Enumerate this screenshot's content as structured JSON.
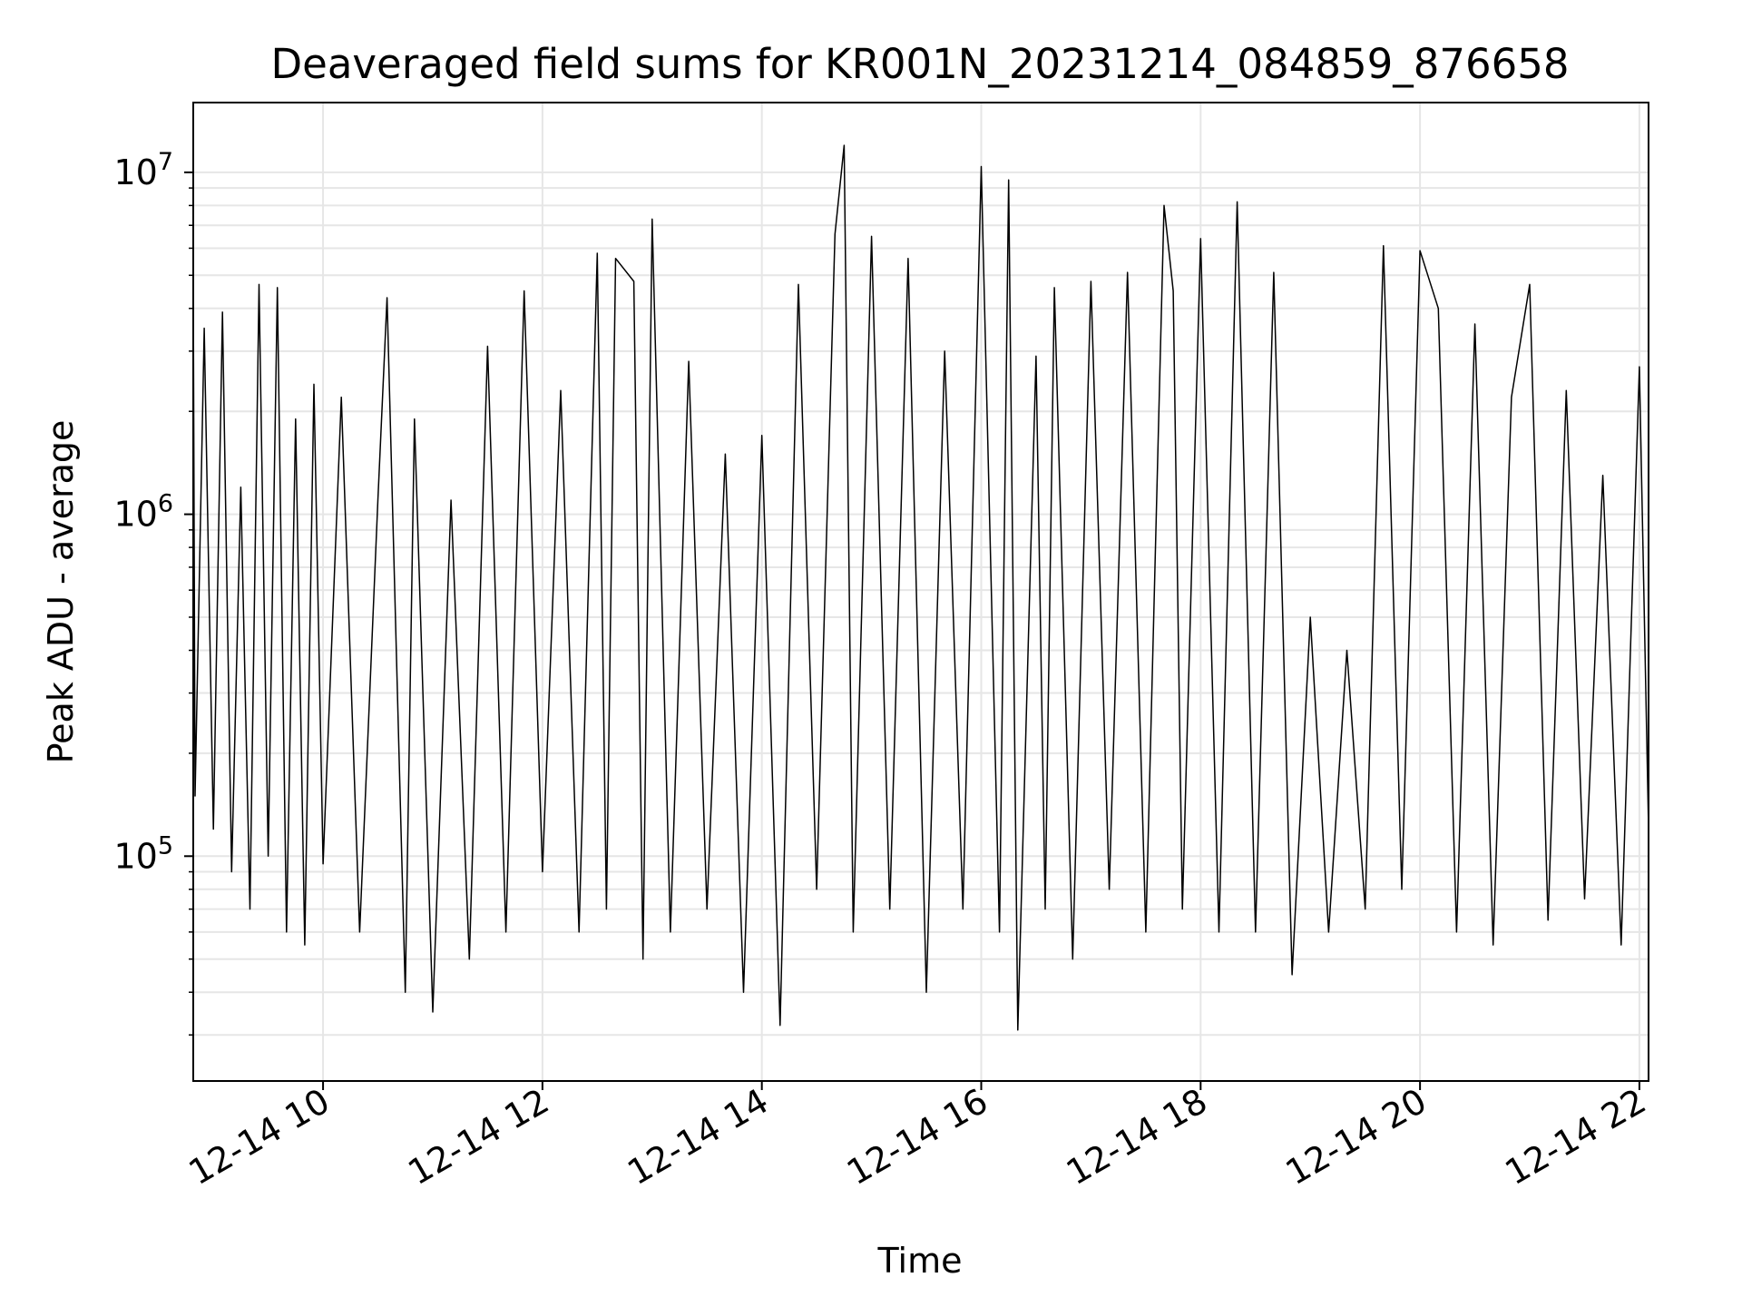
{
  "chart_data": {
    "type": "line",
    "title": "Deaveraged field sums for KR001N_20231214_084859_876658",
    "xlabel": "Time",
    "ylabel": "Peak ADU - average",
    "x_range": [
      "2023-12-14T08:49",
      "2023-12-14T22:05"
    ],
    "x_ticks": [
      {
        "t": "2023-12-14T10:00",
        "label": "12-14 10"
      },
      {
        "t": "2023-12-14T12:00",
        "label": "12-14 12"
      },
      {
        "t": "2023-12-14T14:00",
        "label": "12-14 14"
      },
      {
        "t": "2023-12-14T16:00",
        "label": "12-14 16"
      },
      {
        "t": "2023-12-14T18:00",
        "label": "12-14 18"
      },
      {
        "t": "2023-12-14T20:00",
        "label": "12-14 20"
      },
      {
        "t": "2023-12-14T22:00",
        "label": "12-14 22"
      }
    ],
    "y_scale": "log",
    "ylim": [
      22000,
      16000000
    ],
    "y_ticks": [
      {
        "value": 100000,
        "base": "10",
        "exp": "5"
      },
      {
        "value": 1000000,
        "base": "10",
        "exp": "6"
      },
      {
        "value": 10000000,
        "base": "10",
        "exp": "7"
      }
    ],
    "grid": true,
    "line_color": "#000000",
    "grid_color": "#e6e6e6",
    "series": [
      {
        "x": [
          "2023-12-14T08:49",
          "2023-12-14T08:50",
          "2023-12-14T08:55",
          "2023-12-14T09:00",
          "2023-12-14T09:05",
          "2023-12-14T09:10",
          "2023-12-14T09:15",
          "2023-12-14T09:20",
          "2023-12-14T09:25",
          "2023-12-14T09:30",
          "2023-12-14T09:35",
          "2023-12-14T09:40",
          "2023-12-14T09:45",
          "2023-12-14T09:50",
          "2023-12-14T09:55",
          "2023-12-14T10:00",
          "2023-12-14T10:10",
          "2023-12-14T10:20",
          "2023-12-14T10:30",
          "2023-12-14T10:35",
          "2023-12-14T10:45",
          "2023-12-14T10:50",
          "2023-12-14T11:00",
          "2023-12-14T11:10",
          "2023-12-14T11:20",
          "2023-12-14T11:30",
          "2023-12-14T11:40",
          "2023-12-14T11:50",
          "2023-12-14T12:00",
          "2023-12-14T12:10",
          "2023-12-14T12:20",
          "2023-12-14T12:30",
          "2023-12-14T12:35",
          "2023-12-14T12:40",
          "2023-12-14T12:50",
          "2023-12-14T12:55",
          "2023-12-14T13:00",
          "2023-12-14T13:10",
          "2023-12-14T13:20",
          "2023-12-14T13:30",
          "2023-12-14T13:40",
          "2023-12-14T13:50",
          "2023-12-14T14:00",
          "2023-12-14T14:10",
          "2023-12-14T14:20",
          "2023-12-14T14:30",
          "2023-12-14T14:40",
          "2023-12-14T14:45",
          "2023-12-14T14:50",
          "2023-12-14T15:00",
          "2023-12-14T15:10",
          "2023-12-14T15:20",
          "2023-12-14T15:30",
          "2023-12-14T15:40",
          "2023-12-14T15:50",
          "2023-12-14T16:00",
          "2023-12-14T16:10",
          "2023-12-14T16:15",
          "2023-12-14T16:20",
          "2023-12-14T16:30",
          "2023-12-14T16:35",
          "2023-12-14T16:40",
          "2023-12-14T16:50",
          "2023-12-14T17:00",
          "2023-12-14T17:10",
          "2023-12-14T17:20",
          "2023-12-14T17:30",
          "2023-12-14T17:40",
          "2023-12-14T17:45",
          "2023-12-14T17:50",
          "2023-12-14T18:00",
          "2023-12-14T18:10",
          "2023-12-14T18:20",
          "2023-12-14T18:30",
          "2023-12-14T18:40",
          "2023-12-14T18:50",
          "2023-12-14T19:00",
          "2023-12-14T19:10",
          "2023-12-14T19:20",
          "2023-12-14T19:30",
          "2023-12-14T19:40",
          "2023-12-14T19:50",
          "2023-12-14T20:00",
          "2023-12-14T20:10",
          "2023-12-14T20:20",
          "2023-12-14T20:30",
          "2023-12-14T20:40",
          "2023-12-14T20:50",
          "2023-12-14T21:00",
          "2023-12-14T21:10",
          "2023-12-14T21:20",
          "2023-12-14T21:30",
          "2023-12-14T21:40",
          "2023-12-14T21:50",
          "2023-12-14T22:00",
          "2023-12-14T22:05"
        ],
        "values": [
          4900000,
          150000,
          3500000,
          120000,
          3900000,
          90000,
          1200000,
          70000,
          4700000,
          100000,
          4600000,
          60000,
          1900000,
          55000,
          2400000,
          95000,
          2200000,
          60000,
          1100000,
          4300000,
          40000,
          1900000,
          35000,
          1100000,
          50000,
          3100000,
          60000,
          4500000,
          90000,
          2300000,
          60000,
          5800000,
          70000,
          5600000,
          4800000,
          50000,
          7300000,
          60000,
          2800000,
          70000,
          1500000,
          40000,
          1700000,
          32000,
          4700000,
          80000,
          6600000,
          12000000,
          60000,
          6500000,
          70000,
          5600000,
          40000,
          3000000,
          70000,
          10400000,
          60000,
          9500000,
          31000,
          2900000,
          70000,
          4600000,
          50000,
          4800000,
          80000,
          5100000,
          60000,
          8000000,
          4500000,
          70000,
          6400000,
          60000,
          8200000,
          60000,
          5100000,
          45000,
          500000,
          60000,
          400000,
          70000,
          6100000,
          80000,
          5900000,
          4000000,
          60000,
          3600000,
          55000,
          2200000,
          4700000,
          65000,
          2300000,
          75000,
          1300000,
          55000,
          2700000,
          120000
        ]
      }
    ]
  }
}
